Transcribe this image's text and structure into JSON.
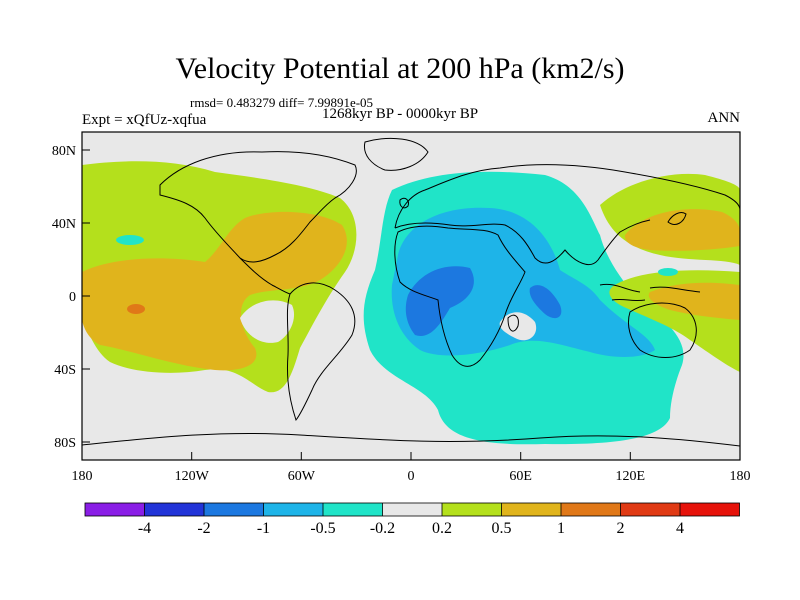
{
  "title": "Velocity Potential at 200 hPa (km2/s)",
  "stats": "rmsd= 0.483279 diff= 7.99891e-05",
  "period": "1268kyr BP - 0000kyr BP",
  "experiment": "Expt = xQfUz-xqfua",
  "season": "ANN",
  "lat_labels": [
    "80N",
    "40N",
    "0",
    "40S",
    "80S"
  ],
  "lon_labels": [
    "180",
    "120W",
    "60W",
    "0",
    "60E",
    "120E",
    "180"
  ],
  "colorbar": {
    "labels": [
      "-4",
      "-2",
      "-1",
      "-0.5",
      "-0.2",
      "0.2",
      "0.5",
      "1",
      "2",
      "4"
    ],
    "colors": [
      "#8a1ee6",
      "#2234d8",
      "#1c78e0",
      "#1eb4e8",
      "#20e4c8",
      "#e8e8e8",
      "#b4e01c",
      "#e0b41c",
      "#e07818",
      "#e03a14",
      "#e6120a"
    ]
  },
  "map_colors": {
    "land_outline": "#000000",
    "neutral": "#e8e8e8",
    "pos_low": "#b4e01c",
    "pos_mid": "#e0b41c",
    "pos_high": "#e07818",
    "neg_low": "#20e4c8",
    "neg_mid": "#1eb4e8",
    "neg_high": "#1c78e0"
  }
}
